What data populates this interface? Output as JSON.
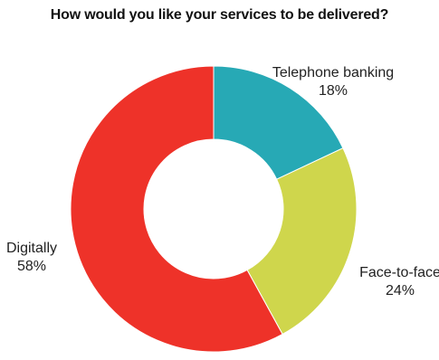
{
  "chart_data": {
    "type": "pie",
    "title": "How would you like your services to be delivered?",
    "donut": true,
    "slices": [
      {
        "label": "Telephone banking",
        "value": 18,
        "value_label": "18%",
        "color": "#27a9b5"
      },
      {
        "label": "Face-to-face",
        "value": 24,
        "value_label": "24%",
        "color": "#cfd64c"
      },
      {
        "label": "Digitally",
        "value": 58,
        "value_label": "58%",
        "color": "#ee3229"
      }
    ],
    "start": "12 o'clock",
    "direction": "clockwise"
  }
}
